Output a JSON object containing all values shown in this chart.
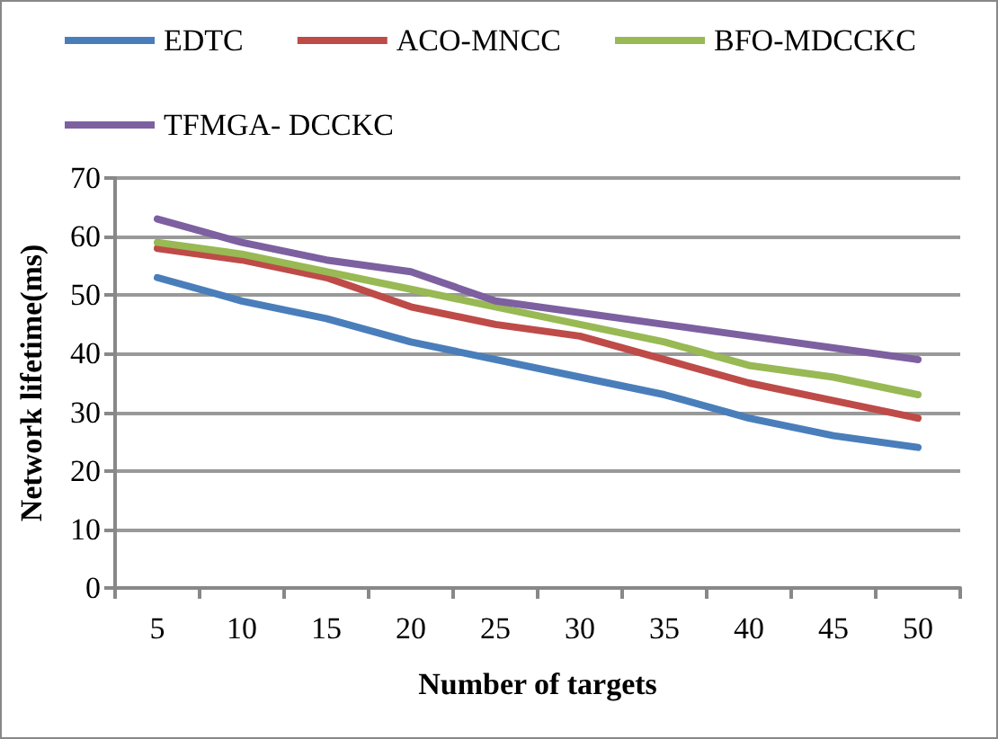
{
  "chart_data": {
    "type": "line",
    "xlabel": "Number of targets",
    "ylabel": "Network lifetime(ms)",
    "categories": [
      "5",
      "10",
      "15",
      "20",
      "25",
      "30",
      "35",
      "40",
      "45",
      "50"
    ],
    "series": [
      {
        "name": "EDTC",
        "color": "#4a7ebb",
        "values": [
          53,
          49,
          46,
          42,
          39,
          36,
          33,
          29,
          26,
          24
        ]
      },
      {
        "name": "ACO-MNCC",
        "color": "#be4b48",
        "values": [
          58,
          56,
          53,
          48,
          45,
          43,
          39,
          35,
          32,
          29
        ]
      },
      {
        "name": "BFO-MDCCKC",
        "color": "#98b954",
        "values": [
          59,
          57,
          54,
          51,
          48,
          45,
          42,
          38,
          36,
          33
        ]
      },
      {
        "name": "TFMGA- DCCKC",
        "color": "#7d60a0",
        "values": [
          63,
          59,
          56,
          54,
          49,
          47,
          45,
          43,
          41,
          39
        ]
      }
    ],
    "ylim": [
      0,
      70
    ],
    "yticks": [
      0,
      10,
      20,
      30,
      40,
      50,
      60,
      70
    ],
    "grid": "y",
    "legend": "top",
    "marker": "none",
    "line_style": "solid"
  }
}
